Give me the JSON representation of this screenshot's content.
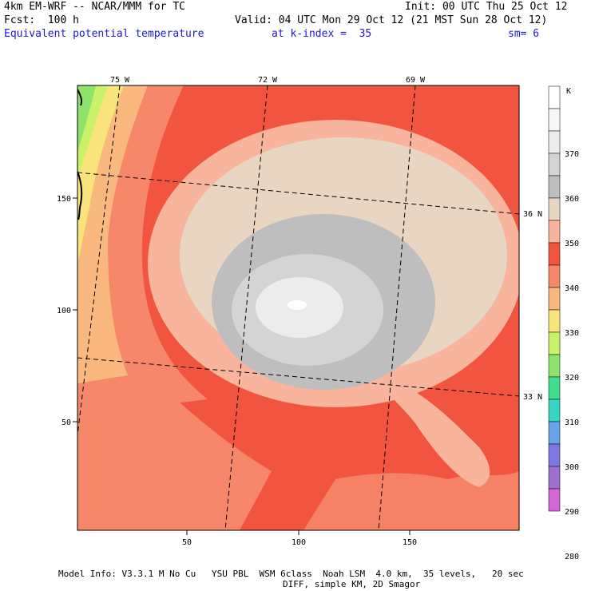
{
  "header": {
    "model": "4km EM-WRF -- NCAR/MMM for TC",
    "init": "Init: 00 UTC Thu 25 Oct 12",
    "fcst": "Fcst:  100 h",
    "valid": "Valid: 04 UTC Mon 29 Oct 12 (21 MST Sun 28 Oct 12)",
    "field": "Equivalent potential temperature",
    "level": "at k-index =  35",
    "smooth": "sm= 6"
  },
  "map": {
    "lon_labels": [
      "75 W",
      "72 W",
      "69 W"
    ],
    "lat_labels": [
      "36 N",
      "33 N"
    ],
    "x_ticks": [
      "50",
      "100",
      "150"
    ],
    "y_ticks": [
      "150",
      "100",
      "50"
    ]
  },
  "colorbar": {
    "unit": "K",
    "labels": [
      "370",
      "360",
      "350",
      "340",
      "330",
      "320",
      "310",
      "300",
      "290",
      "280"
    ],
    "colors": [
      "#ffffff",
      "#f7f7f7",
      "#ececec",
      "#d4d4d4",
      "#bebebe",
      "#e9d6c2",
      "#f8b49c",
      "#f2553f",
      "#f6876a",
      "#f9b87e",
      "#f8e47a",
      "#c9f26a",
      "#8ee36b",
      "#40df8f",
      "#35d4c4",
      "#67a4ea",
      "#7f78e2",
      "#9f6fd0",
      "#d566d6"
    ]
  },
  "footer": {
    "line1": "Model Info: V3.3.1 M No Cu   YSU PBL  WSM 6class  Noah LSM  4.0 km,  35 levels,   20 sec",
    "line2": "DIFF, simple KM, 2D Smagor"
  }
}
